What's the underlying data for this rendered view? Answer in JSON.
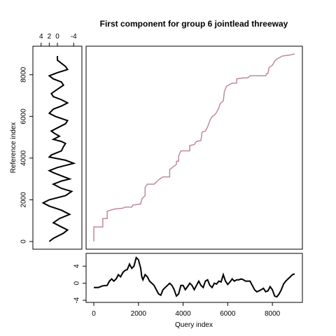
{
  "title": "First component for group 6 jointlead threeway",
  "colors": {
    "path": "#c08a99",
    "series": "#000000",
    "frame": "#000000"
  },
  "chart_data": [
    {
      "type": "line",
      "panel": "warping-path",
      "xlabel": "Query index",
      "ylabel": "Reference index",
      "xlim": [
        0,
        9000
      ],
      "ylim": [
        0,
        9000
      ],
      "points": [
        [
          0,
          0
        ],
        [
          0,
          700
        ],
        [
          400,
          700
        ],
        [
          400,
          1100
        ],
        [
          600,
          1100
        ],
        [
          600,
          1450
        ],
        [
          900,
          1550
        ],
        [
          1300,
          1600
        ],
        [
          1400,
          1650
        ],
        [
          1700,
          1650
        ],
        [
          1750,
          1750
        ],
        [
          2100,
          1800
        ],
        [
          2150,
          2050
        ],
        [
          2300,
          2200
        ],
        [
          2300,
          2600
        ],
        [
          2400,
          2750
        ],
        [
          2700,
          2750
        ],
        [
          2800,
          2850
        ],
        [
          2950,
          3000
        ],
        [
          3100,
          3100
        ],
        [
          3400,
          3100
        ],
        [
          3400,
          3450
        ],
        [
          3700,
          3700
        ],
        [
          3700,
          3850
        ],
        [
          3800,
          3850
        ],
        [
          3800,
          4100
        ],
        [
          3900,
          4350
        ],
        [
          4300,
          4350
        ],
        [
          4300,
          4600
        ],
        [
          4500,
          4650
        ],
        [
          4600,
          4800
        ],
        [
          4800,
          4850
        ],
        [
          4850,
          5250
        ],
        [
          5000,
          5300
        ],
        [
          5100,
          5500
        ],
        [
          5200,
          5800
        ],
        [
          5300,
          6000
        ],
        [
          5400,
          6050
        ],
        [
          5500,
          6200
        ],
        [
          5600,
          6400
        ],
        [
          5650,
          6600
        ],
        [
          5800,
          6750
        ],
        [
          5850,
          7200
        ],
        [
          5950,
          7450
        ],
        [
          6200,
          7600
        ],
        [
          6400,
          7600
        ],
        [
          6400,
          7800
        ],
        [
          6700,
          7850
        ],
        [
          6900,
          7850
        ],
        [
          7000,
          7950
        ],
        [
          7700,
          7950
        ],
        [
          7750,
          8050
        ],
        [
          7800,
          8050
        ],
        [
          7850,
          8350
        ],
        [
          8000,
          8450
        ],
        [
          8100,
          8650
        ],
        [
          8200,
          8750
        ],
        [
          8450,
          8900
        ],
        [
          8800,
          8950
        ],
        [
          9000,
          9000
        ]
      ]
    },
    {
      "type": "line",
      "panel": "query-series",
      "xlim": [
        0,
        9000
      ],
      "ylim": [
        -4,
        6.5
      ],
      "yticks": [
        -4,
        0,
        4
      ],
      "xticks": [
        0,
        2000,
        4000,
        6000,
        8000
      ],
      "points": [
        [
          0,
          -1
        ],
        [
          200,
          -1
        ],
        [
          400,
          -0.6
        ],
        [
          600,
          -0.5
        ],
        [
          700,
          0.5
        ],
        [
          800,
          1
        ],
        [
          900,
          0.5
        ],
        [
          1000,
          1
        ],
        [
          1100,
          2
        ],
        [
          1200,
          1.5
        ],
        [
          1300,
          2.5
        ],
        [
          1400,
          3
        ],
        [
          1500,
          3.2
        ],
        [
          1600,
          4.5
        ],
        [
          1700,
          3.5
        ],
        [
          1800,
          4
        ],
        [
          1850,
          5
        ],
        [
          1900,
          6
        ],
        [
          2000,
          5.5
        ],
        [
          2050,
          4.5
        ],
        [
          2100,
          3.5
        ],
        [
          2150,
          1.5
        ],
        [
          2200,
          0.8
        ],
        [
          2300,
          2
        ],
        [
          2400,
          1.5
        ],
        [
          2500,
          0.5
        ],
        [
          2600,
          0
        ],
        [
          2700,
          -0.5
        ],
        [
          2800,
          -1.5
        ],
        [
          2900,
          -2.5
        ],
        [
          3000,
          -2.8
        ],
        [
          3100,
          -1.5
        ],
        [
          3200,
          -1
        ],
        [
          3300,
          -0.5
        ],
        [
          3400,
          0
        ],
        [
          3500,
          -0.5
        ],
        [
          3600,
          -1.5
        ],
        [
          3700,
          -3
        ],
        [
          3800,
          -2.5
        ],
        [
          3900,
          -0.5
        ],
        [
          4000,
          -0.5
        ],
        [
          4100,
          -1.5
        ],
        [
          4200,
          -0.8
        ],
        [
          4300,
          0
        ],
        [
          4400,
          -0.5
        ],
        [
          4500,
          -1.5
        ],
        [
          4600,
          -0.5
        ],
        [
          4700,
          0.5
        ],
        [
          4800,
          -0.5
        ],
        [
          4900,
          -1
        ],
        [
          5000,
          0.5
        ],
        [
          5100,
          0.8
        ],
        [
          5200,
          -0.5
        ],
        [
          5300,
          -1
        ],
        [
          5400,
          0
        ],
        [
          5500,
          -0.2
        ],
        [
          5600,
          0.5
        ],
        [
          5700,
          0.3
        ],
        [
          5800,
          2
        ],
        [
          5900,
          0.5
        ],
        [
          6000,
          -0.3
        ],
        [
          6100,
          0.3
        ],
        [
          6200,
          1
        ],
        [
          6300,
          0.5
        ],
        [
          6400,
          0.8
        ],
        [
          6500,
          0.8
        ],
        [
          6600,
          1
        ],
        [
          6700,
          0.8
        ],
        [
          6800,
          0.5
        ],
        [
          6900,
          0.5
        ],
        [
          7000,
          0.5
        ],
        [
          7100,
          -0.5
        ],
        [
          7200,
          -1.5
        ],
        [
          7300,
          -2
        ],
        [
          7400,
          -1.8
        ],
        [
          7500,
          -1.5
        ],
        [
          7600,
          -1.2
        ],
        [
          7700,
          -2
        ],
        [
          7800,
          -1.8
        ],
        [
          7900,
          -0.8
        ],
        [
          8000,
          -1.5
        ],
        [
          8100,
          -3
        ],
        [
          8200,
          -3.2
        ],
        [
          8300,
          -2.5
        ],
        [
          8400,
          -1.5
        ],
        [
          8500,
          -0.2
        ],
        [
          8600,
          0.5
        ],
        [
          8700,
          1
        ],
        [
          8800,
          1.5
        ],
        [
          8900,
          2
        ],
        [
          9000,
          2.2
        ]
      ]
    },
    {
      "type": "line",
      "panel": "reference-series",
      "xlim": [
        5.5,
        -5.5
      ],
      "ylim": [
        0,
        9000
      ],
      "xticks": [
        4,
        2,
        0,
        -4
      ],
      "yticks": [
        0,
        2000,
        4000,
        6000,
        8000
      ],
      "points": [
        [
          2,
          0
        ],
        [
          1,
          150
        ],
        [
          -1.5,
          400
        ],
        [
          -2.5,
          550
        ],
        [
          -1,
          700
        ],
        [
          1,
          900
        ],
        [
          -0.5,
          1100
        ],
        [
          -3,
          1300
        ],
        [
          -1,
          1500
        ],
        [
          2,
          1700
        ],
        [
          3.5,
          1850
        ],
        [
          2,
          2000
        ],
        [
          -2,
          2200
        ],
        [
          -3.5,
          2400
        ],
        [
          -1,
          2550
        ],
        [
          1,
          2750
        ],
        [
          -1,
          2900
        ],
        [
          -3,
          3000
        ],
        [
          -1,
          3150
        ],
        [
          1,
          3300
        ],
        [
          2,
          3400
        ],
        [
          0,
          3550
        ],
        [
          -4,
          3750
        ],
        [
          -2,
          3900
        ],
        [
          2,
          4050
        ],
        [
          1.5,
          4150
        ],
        [
          -1,
          4350
        ],
        [
          -1.5,
          4550
        ],
        [
          -2,
          4700
        ],
        [
          -1,
          4800
        ],
        [
          1,
          4900
        ],
        [
          -0.5,
          5050
        ],
        [
          0.8,
          5200
        ],
        [
          1.5,
          5300
        ],
        [
          0,
          5450
        ],
        [
          -2,
          5650
        ],
        [
          -2.5,
          5800
        ],
        [
          -1,
          5900
        ],
        [
          0.5,
          6000
        ],
        [
          2,
          6150
        ],
        [
          1,
          6350
        ],
        [
          -1,
          6500
        ],
        [
          -2.5,
          6650
        ],
        [
          -1,
          6800
        ],
        [
          1,
          6950
        ],
        [
          1.5,
          7100
        ],
        [
          0,
          7300
        ],
        [
          -1.5,
          7500
        ],
        [
          -1,
          7650
        ],
        [
          1,
          7800
        ],
        [
          2,
          7950
        ],
        [
          0,
          8100
        ],
        [
          -2.5,
          8250
        ],
        [
          -2,
          8400
        ],
        [
          -1,
          8550
        ],
        [
          0,
          8700
        ],
        [
          0,
          8900
        ]
      ]
    }
  ]
}
